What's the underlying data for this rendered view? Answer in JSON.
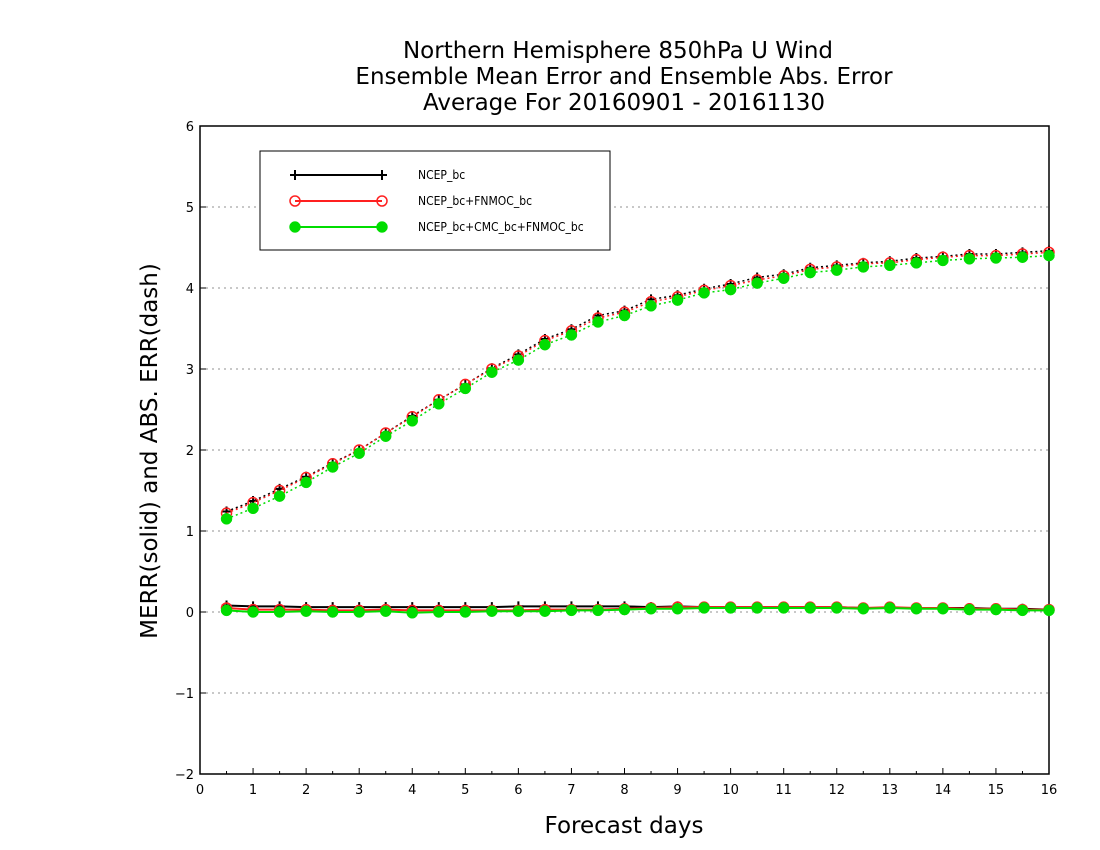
{
  "chart_data": {
    "type": "line",
    "title_lines": [
      "Northern Hemisphere 850hPa U Wind",
      "Ensemble Mean Error and Ensemble Abs. Error",
      "Average For 20160901 - 20161130"
    ],
    "xlabel": "Forecast days",
    "ylabel": "MERR(solid) and ABS. ERR(dash)",
    "xlim": [
      0,
      16
    ],
    "ylim": [
      -2,
      6
    ],
    "x_ticks": [
      "0",
      "1",
      "2",
      "3",
      "4",
      "5",
      "6",
      "7",
      "8",
      "9",
      "10",
      "11",
      "12",
      "13",
      "14",
      "15",
      "16"
    ],
    "y_ticks": [
      "-2",
      "-1",
      "0",
      "1",
      "2",
      "3",
      "4",
      "5",
      "6"
    ],
    "grid": "horizontal dotted",
    "legend_position": "top-left",
    "x": [
      0.5,
      1,
      1.5,
      2,
      2.5,
      3,
      3.5,
      4,
      4.5,
      5,
      5.5,
      6,
      6.5,
      7,
      7.5,
      8,
      8.5,
      9,
      9.5,
      10,
      10.5,
      11,
      11.5,
      12,
      12.5,
      13,
      13.5,
      14,
      14.5,
      15,
      15.5,
      16
    ],
    "series": [
      {
        "name": "NCEP_bc",
        "color": "#000000",
        "marker": "plus",
        "merr": [
          0.08,
          0.07,
          0.07,
          0.06,
          0.06,
          0.06,
          0.06,
          0.06,
          0.06,
          0.06,
          0.06,
          0.07,
          0.07,
          0.07,
          0.07,
          0.07,
          0.06,
          0.07,
          0.06,
          0.06,
          0.06,
          0.06,
          0.06,
          0.06,
          0.05,
          0.05,
          0.05,
          0.05,
          0.05,
          0.04,
          0.04,
          0.03
        ],
        "abs_err": [
          1.24,
          1.37,
          1.52,
          1.67,
          1.84,
          2.0,
          2.21,
          2.42,
          2.62,
          2.81,
          3.01,
          3.18,
          3.37,
          3.49,
          3.66,
          3.72,
          3.86,
          3.91,
          3.99,
          4.05,
          4.13,
          4.17,
          4.25,
          4.28,
          4.31,
          4.33,
          4.37,
          4.39,
          4.42,
          4.42,
          4.44,
          4.46
        ]
      },
      {
        "name": "NCEP_bc+FNMOC_bc",
        "color": "#ff2020",
        "marker": "open-circle",
        "merr": [
          0.05,
          0.03,
          0.03,
          0.03,
          0.02,
          0.02,
          0.03,
          0.02,
          0.02,
          0.02,
          0.02,
          0.02,
          0.03,
          0.03,
          0.03,
          0.04,
          0.05,
          0.06,
          0.06,
          0.06,
          0.06,
          0.06,
          0.06,
          0.06,
          0.05,
          0.06,
          0.05,
          0.05,
          0.04,
          0.04,
          0.03,
          0.03
        ],
        "abs_err": [
          1.22,
          1.35,
          1.5,
          1.66,
          1.83,
          2.0,
          2.21,
          2.41,
          2.62,
          2.81,
          3.0,
          3.16,
          3.35,
          3.47,
          3.63,
          3.7,
          3.83,
          3.89,
          3.97,
          4.03,
          4.1,
          4.15,
          4.23,
          4.26,
          4.3,
          4.31,
          4.35,
          4.38,
          4.4,
          4.4,
          4.42,
          4.44
        ]
      },
      {
        "name": "NCEP_bc+CMC_bc+FNMOC_bc",
        "color": "#00dd00",
        "marker": "filled-circle",
        "merr": [
          0.02,
          0.0,
          0.0,
          0.01,
          0.0,
          0.0,
          0.01,
          -0.01,
          0.0,
          0.0,
          0.01,
          0.01,
          0.01,
          0.02,
          0.02,
          0.03,
          0.04,
          0.04,
          0.05,
          0.05,
          0.05,
          0.05,
          0.05,
          0.05,
          0.04,
          0.05,
          0.04,
          0.04,
          0.03,
          0.03,
          0.02,
          0.02
        ],
        "abs_err": [
          1.15,
          1.28,
          1.43,
          1.6,
          1.79,
          1.96,
          2.17,
          2.36,
          2.57,
          2.76,
          2.96,
          3.11,
          3.3,
          3.42,
          3.58,
          3.66,
          3.78,
          3.85,
          3.94,
          3.98,
          4.06,
          4.12,
          4.19,
          4.22,
          4.26,
          4.28,
          4.31,
          4.34,
          4.36,
          4.37,
          4.38,
          4.4
        ]
      }
    ]
  }
}
